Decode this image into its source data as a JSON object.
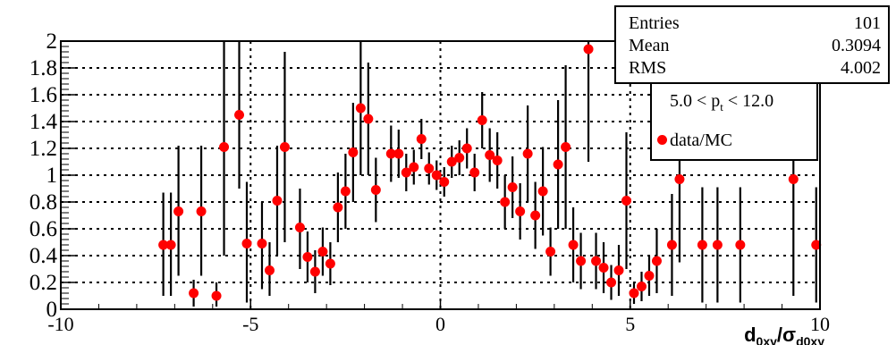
{
  "stats": {
    "rows": [
      {
        "key": "Entries",
        "value": "101"
      },
      {
        "key": "Mean",
        "value": "0.3094"
      },
      {
        "key": "RMS",
        "value": "4.002"
      }
    ]
  },
  "legend": {
    "cut_prefix": "5.0 < p",
    "cut_sub": "t",
    "cut_suffix": " < 12.0",
    "entry": "data/MC",
    "marker_color": "#ff0000"
  },
  "chart_data": {
    "type": "scatter",
    "xlim": [
      -10,
      10
    ],
    "ylim": [
      0,
      2
    ],
    "grid": true,
    "xticks": [
      -10,
      -5,
      0,
      5,
      10
    ],
    "yticks": [
      "0",
      "0.2",
      "0.4",
      "0.6",
      "0.8",
      "1",
      "1.2",
      "1.4",
      "1.6",
      "1.8",
      "2"
    ],
    "xlabel": {
      "main": "d",
      "sub": "0xy",
      "sep": "/",
      "sigma": "σ",
      "sigma_sub": "d0xy"
    },
    "color": "#ff0000",
    "series": [
      {
        "points": [
          {
            "x": -7.3,
            "y": 0.48,
            "lo": 0.1,
            "hi": 0.87
          },
          {
            "x": -7.1,
            "y": 0.48,
            "lo": 0.1,
            "hi": 0.87
          },
          {
            "x": -6.9,
            "y": 0.73,
            "lo": 0.25,
            "hi": 1.22
          },
          {
            "x": -6.5,
            "y": 0.12,
            "lo": 0.02,
            "hi": 0.22
          },
          {
            "x": -6.3,
            "y": 0.73,
            "lo": 0.25,
            "hi": 1.22
          },
          {
            "x": -5.9,
            "y": 0.1,
            "lo": 0.02,
            "hi": 0.2
          },
          {
            "x": -5.7,
            "y": 1.21,
            "lo": 0.4,
            "hi": 2.0
          },
          {
            "x": -5.3,
            "y": 1.45,
            "lo": 0.9,
            "hi": 2.0
          },
          {
            "x": -5.1,
            "y": 0.49,
            "lo": 0.05,
            "hi": 0.95
          },
          {
            "x": -4.7,
            "y": 0.49,
            "lo": 0.15,
            "hi": 0.8
          },
          {
            "x": -4.5,
            "y": 0.29,
            "lo": 0.1,
            "hi": 0.5
          },
          {
            "x": -4.3,
            "y": 0.81,
            "lo": 0.4,
            "hi": 1.22
          },
          {
            "x": -4.1,
            "y": 1.21,
            "lo": 0.5,
            "hi": 1.92
          },
          {
            "x": -3.7,
            "y": 0.61,
            "lo": 0.3,
            "hi": 0.9
          },
          {
            "x": -3.5,
            "y": 0.39,
            "lo": 0.2,
            "hi": 0.58
          },
          {
            "x": -3.3,
            "y": 0.28,
            "lo": 0.12,
            "hi": 0.44
          },
          {
            "x": -3.1,
            "y": 0.43,
            "lo": 0.25,
            "hi": 0.61
          },
          {
            "x": -2.9,
            "y": 0.34,
            "lo": 0.18,
            "hi": 0.5
          },
          {
            "x": -2.7,
            "y": 0.76,
            "lo": 0.5,
            "hi": 1.02
          },
          {
            "x": -2.5,
            "y": 0.88,
            "lo": 0.6,
            "hi": 1.16
          },
          {
            "x": -2.3,
            "y": 1.17,
            "lo": 0.8,
            "hi": 1.54
          },
          {
            "x": -2.1,
            "y": 1.5,
            "lo": 1.0,
            "hi": 2.0
          },
          {
            "x": -1.9,
            "y": 1.42,
            "lo": 1.0,
            "hi": 1.84
          },
          {
            "x": -1.7,
            "y": 0.89,
            "lo": 0.65,
            "hi": 1.13
          },
          {
            "x": -1.3,
            "y": 1.16,
            "lo": 0.95,
            "hi": 1.37
          },
          {
            "x": -1.1,
            "y": 1.16,
            "lo": 0.98,
            "hi": 1.34
          },
          {
            "x": -0.9,
            "y": 1.02,
            "lo": 0.88,
            "hi": 1.16
          },
          {
            "x": -0.7,
            "y": 1.06,
            "lo": 0.93,
            "hi": 1.19
          },
          {
            "x": -0.5,
            "y": 1.27,
            "lo": 1.12,
            "hi": 1.42
          },
          {
            "x": -0.3,
            "y": 1.05,
            "lo": 0.93,
            "hi": 1.17
          },
          {
            "x": -0.1,
            "y": 1.0,
            "lo": 0.89,
            "hi": 1.11
          },
          {
            "x": 0.1,
            "y": 0.95,
            "lo": 0.84,
            "hi": 1.06
          },
          {
            "x": 0.3,
            "y": 1.1,
            "lo": 0.98,
            "hi": 1.22
          },
          {
            "x": 0.5,
            "y": 1.13,
            "lo": 1.0,
            "hi": 1.26
          },
          {
            "x": 0.7,
            "y": 1.2,
            "lo": 1.05,
            "hi": 1.35
          },
          {
            "x": 0.9,
            "y": 1.02,
            "lo": 0.88,
            "hi": 1.16
          },
          {
            "x": 1.1,
            "y": 1.41,
            "lo": 1.2,
            "hi": 1.62
          },
          {
            "x": 1.3,
            "y": 1.15,
            "lo": 0.95,
            "hi": 1.35
          },
          {
            "x": 1.5,
            "y": 1.11,
            "lo": 0.9,
            "hi": 1.32
          },
          {
            "x": 1.7,
            "y": 0.8,
            "lo": 0.6,
            "hi": 1.0
          },
          {
            "x": 1.9,
            "y": 0.91,
            "lo": 0.68,
            "hi": 1.14
          },
          {
            "x": 2.1,
            "y": 0.73,
            "lo": 0.52,
            "hi": 0.94
          },
          {
            "x": 2.3,
            "y": 1.16,
            "lo": 0.8,
            "hi": 1.52
          },
          {
            "x": 2.5,
            "y": 0.7,
            "lo": 0.45,
            "hi": 0.95
          },
          {
            "x": 2.7,
            "y": 0.88,
            "lo": 0.55,
            "hi": 1.21
          },
          {
            "x": 2.9,
            "y": 0.43,
            "lo": 0.25,
            "hi": 0.61
          },
          {
            "x": 3.1,
            "y": 1.08,
            "lo": 0.6,
            "hi": 1.56
          },
          {
            "x": 3.3,
            "y": 1.21,
            "lo": 0.6,
            "hi": 1.82
          },
          {
            "x": 3.5,
            "y": 0.48,
            "lo": 0.2,
            "hi": 0.76
          },
          {
            "x": 3.7,
            "y": 0.36,
            "lo": 0.15,
            "hi": 0.57
          },
          {
            "x": 3.9,
            "y": 1.94,
            "lo": 1.1,
            "hi": 2.0
          },
          {
            "x": 4.1,
            "y": 0.36,
            "lo": 0.15,
            "hi": 0.57
          },
          {
            "x": 4.3,
            "y": 0.31,
            "lo": 0.12,
            "hi": 0.5
          },
          {
            "x": 4.5,
            "y": 0.2,
            "lo": 0.07,
            "hi": 0.33
          },
          {
            "x": 4.7,
            "y": 0.29,
            "lo": 0.1,
            "hi": 0.48
          },
          {
            "x": 4.9,
            "y": 0.81,
            "lo": 0.3,
            "hi": 1.32
          },
          {
            "x": 5.1,
            "y": 0.12,
            "lo": 0.04,
            "hi": 0.2
          },
          {
            "x": 5.3,
            "y": 0.17,
            "lo": 0.06,
            "hi": 0.28
          },
          {
            "x": 5.5,
            "y": 0.25,
            "lo": 0.1,
            "hi": 0.4
          },
          {
            "x": 5.7,
            "y": 0.36,
            "lo": 0.12,
            "hi": 0.6
          },
          {
            "x": 6.1,
            "y": 0.48,
            "lo": 0.1,
            "hi": 0.86
          },
          {
            "x": 6.3,
            "y": 0.97,
            "lo": 0.35,
            "hi": 1.59
          },
          {
            "x": 6.9,
            "y": 0.48,
            "lo": 0.05,
            "hi": 0.91
          },
          {
            "x": 7.3,
            "y": 0.48,
            "lo": 0.05,
            "hi": 0.91
          },
          {
            "x": 7.9,
            "y": 0.48,
            "lo": 0.05,
            "hi": 0.91
          },
          {
            "x": 9.3,
            "y": 0.97,
            "lo": 0.1,
            "hi": 1.84
          },
          {
            "x": 9.9,
            "y": 0.48,
            "lo": 0.05,
            "hi": 0.91
          }
        ]
      }
    ]
  }
}
